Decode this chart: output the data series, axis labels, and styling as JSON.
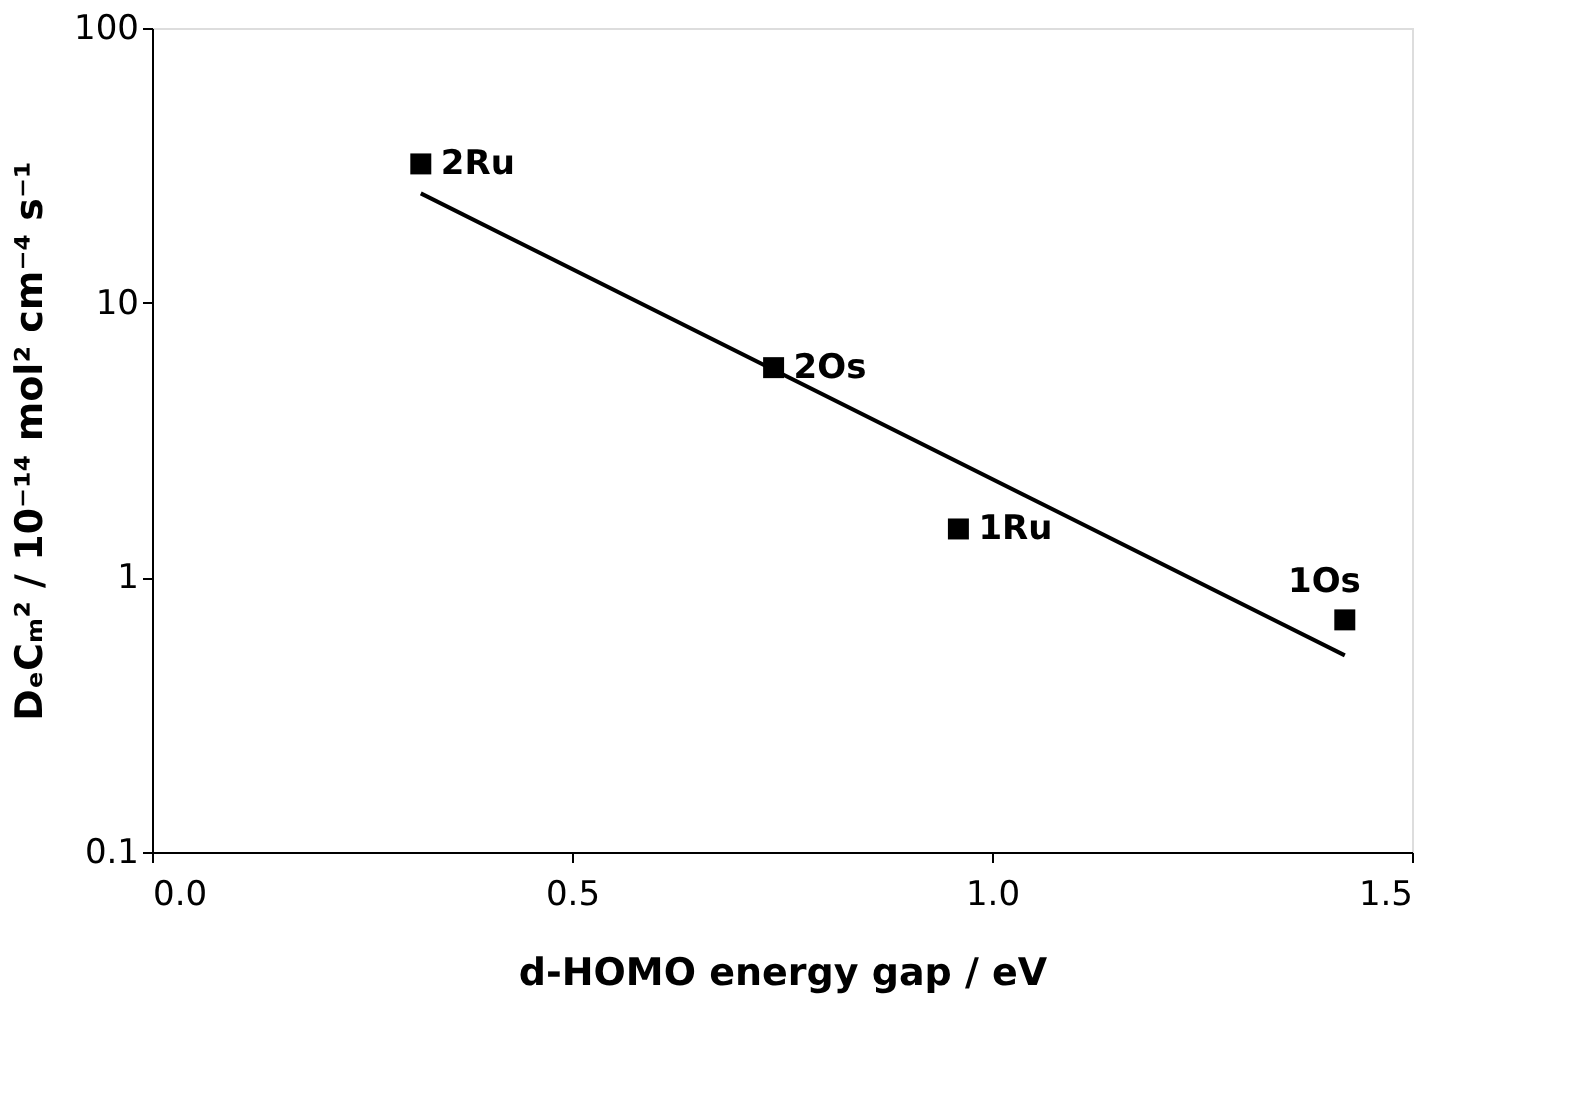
{
  "chart_data": {
    "type": "scatter",
    "xlabel": "d-HOMO energy gap / eV",
    "ylabel": "DₑCₘ² / 10⁻¹⁴ mol² cm⁻⁴ s⁻¹",
    "x": [
      0.32,
      0.74,
      0.96,
      1.42
    ],
    "series": [
      {
        "color": "#000000",
        "marker": "square",
        "values": [
          32,
          5.8,
          1.5,
          0.7
        ]
      },
      {
        "type": "line",
        "color": "#000000",
        "x": [
          0.32,
          1.42
        ],
        "values": [
          25,
          0.52
        ],
        "marker": "none",
        "line_style": "solid"
      }
    ],
    "annotations": [
      {
        "text": "2Ru",
        "x": 0.32,
        "y": 32
      },
      {
        "text": "2Os",
        "x": 0.74,
        "y": 5.8
      },
      {
        "text": "1Ru",
        "x": 0.96,
        "y": 1.5
      },
      {
        "text": "1Os",
        "x": 1.42,
        "y": 0.7
      }
    ],
    "xlim": [
      0,
      1.5
    ],
    "xticks": [
      {
        "value": 0,
        "label": "0.0"
      },
      0.5,
      {
        "value": 1,
        "label": "1.0"
      },
      1.5
    ],
    "ylim": [
      0.1,
      100
    ],
    "yticks": [
      0.1,
      1,
      10,
      100
    ],
    "log": "y",
    "grid": false
  }
}
